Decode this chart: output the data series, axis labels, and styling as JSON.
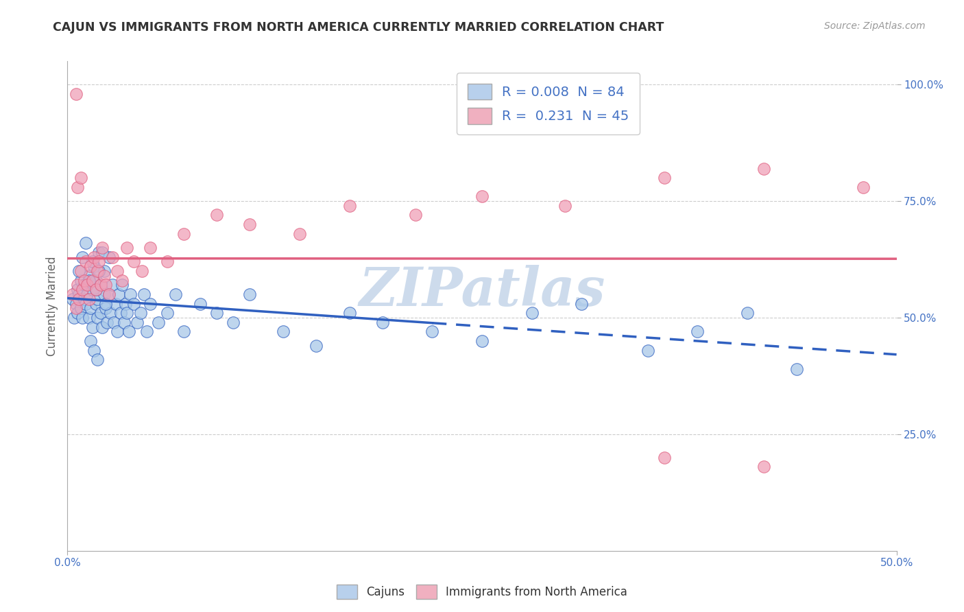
{
  "title": "CAJUN VS IMMIGRANTS FROM NORTH AMERICA CURRENTLY MARRIED CORRELATION CHART",
  "source": "Source: ZipAtlas.com",
  "ylabel": "Currently Married",
  "y_ticks": [
    "25.0%",
    "50.0%",
    "75.0%",
    "100.0%"
  ],
  "y_tick_vals": [
    0.25,
    0.5,
    0.75,
    1.0
  ],
  "x_range": [
    0.0,
    0.5
  ],
  "y_range": [
    0.0,
    1.05
  ],
  "legend_label1": "R = 0.008  N = 84",
  "legend_label2": "R =  0.231  N = 45",
  "scatter_color1": "#a8c8e8",
  "scatter_color2": "#f0a0b8",
  "line_color1": "#3060c0",
  "line_color2": "#e06080",
  "watermark": "ZIPatlas",
  "cajun_x": [
    0.003,
    0.004,
    0.005,
    0.006,
    0.006,
    0.007,
    0.008,
    0.008,
    0.009,
    0.01,
    0.01,
    0.011,
    0.012,
    0.013,
    0.013,
    0.014,
    0.015,
    0.015,
    0.016,
    0.017,
    0.017,
    0.018,
    0.018,
    0.019,
    0.02,
    0.02,
    0.021,
    0.022,
    0.022,
    0.023,
    0.024,
    0.025,
    0.025,
    0.026,
    0.027,
    0.028,
    0.029,
    0.03,
    0.031,
    0.032,
    0.033,
    0.034,
    0.035,
    0.036,
    0.037,
    0.038,
    0.04,
    0.042,
    0.044,
    0.046,
    0.048,
    0.05,
    0.055,
    0.06,
    0.065,
    0.07,
    0.08,
    0.09,
    0.1,
    0.11,
    0.13,
    0.15,
    0.17,
    0.19,
    0.22,
    0.25,
    0.28,
    0.31,
    0.35,
    0.38,
    0.41,
    0.44,
    0.007,
    0.009,
    0.011,
    0.013,
    0.015,
    0.017,
    0.019,
    0.021,
    0.014,
    0.016,
    0.018,
    0.023
  ],
  "cajun_y": [
    0.54,
    0.5,
    0.53,
    0.51,
    0.56,
    0.55,
    0.52,
    0.58,
    0.5,
    0.54,
    0.57,
    0.53,
    0.55,
    0.5,
    0.59,
    0.52,
    0.56,
    0.48,
    0.61,
    0.53,
    0.58,
    0.5,
    0.54,
    0.64,
    0.51,
    0.57,
    0.48,
    0.55,
    0.6,
    0.52,
    0.49,
    0.55,
    0.63,
    0.51,
    0.57,
    0.49,
    0.53,
    0.47,
    0.55,
    0.51,
    0.57,
    0.49,
    0.53,
    0.51,
    0.47,
    0.55,
    0.53,
    0.49,
    0.51,
    0.55,
    0.47,
    0.53,
    0.49,
    0.51,
    0.55,
    0.47,
    0.53,
    0.51,
    0.49,
    0.55,
    0.47,
    0.44,
    0.51,
    0.49,
    0.47,
    0.45,
    0.51,
    0.53,
    0.43,
    0.47,
    0.51,
    0.39,
    0.6,
    0.63,
    0.66,
    0.58,
    0.62,
    0.56,
    0.6,
    0.64,
    0.45,
    0.43,
    0.41,
    0.53
  ],
  "immig_x": [
    0.003,
    0.005,
    0.006,
    0.007,
    0.008,
    0.009,
    0.01,
    0.011,
    0.012,
    0.013,
    0.014,
    0.015,
    0.016,
    0.017,
    0.018,
    0.019,
    0.02,
    0.021,
    0.022,
    0.023,
    0.025,
    0.027,
    0.03,
    0.033,
    0.036,
    0.04,
    0.045,
    0.05,
    0.06,
    0.07,
    0.09,
    0.11,
    0.14,
    0.17,
    0.21,
    0.25,
    0.3,
    0.36,
    0.42,
    0.48,
    0.36,
    0.42,
    0.006,
    0.008,
    0.005
  ],
  "immig_y": [
    0.55,
    0.52,
    0.57,
    0.54,
    0.6,
    0.56,
    0.58,
    0.62,
    0.57,
    0.54,
    0.61,
    0.58,
    0.63,
    0.56,
    0.6,
    0.62,
    0.57,
    0.65,
    0.59,
    0.57,
    0.55,
    0.63,
    0.6,
    0.58,
    0.65,
    0.62,
    0.6,
    0.65,
    0.62,
    0.68,
    0.72,
    0.7,
    0.68,
    0.74,
    0.72,
    0.76,
    0.74,
    0.8,
    0.82,
    0.78,
    0.2,
    0.18,
    0.78,
    0.8,
    0.98
  ],
  "grid_color": "#cccccc",
  "bg_color": "#ffffff",
  "title_color": "#333333",
  "axis_label_color": "#666666",
  "tick_label_color": "#4472c4",
  "watermark_color": "#c8d8ea",
  "legend_box_color1": "#b8d0ec",
  "legend_box_color2": "#f0b0c0"
}
